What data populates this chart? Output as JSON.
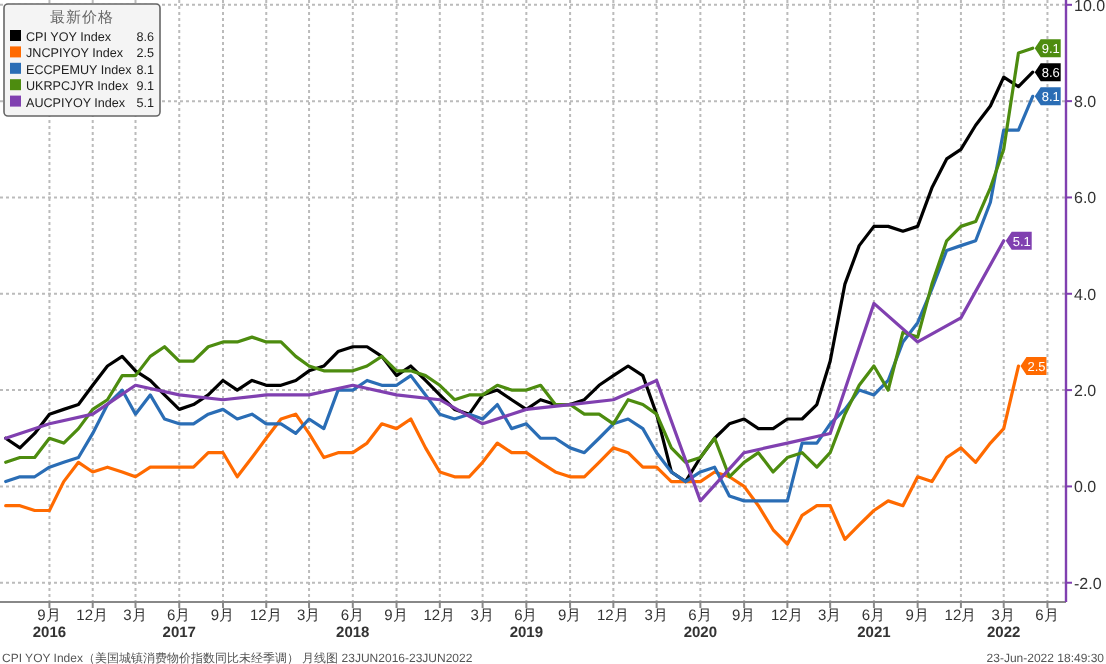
{
  "chart_data": {
    "type": "line",
    "legend_title": "最新价格",
    "legend": "top left",
    "grid": true,
    "marker": "none",
    "line_style": "solid",
    "x": [
      "2016-06",
      "2016-07",
      "2016-08",
      "2016-09",
      "2016-10",
      "2016-11",
      "2016-12",
      "2017-01",
      "2017-02",
      "2017-03",
      "2017-04",
      "2017-05",
      "2017-06",
      "2017-07",
      "2017-08",
      "2017-09",
      "2017-10",
      "2017-11",
      "2017-12",
      "2018-01",
      "2018-02",
      "2018-03",
      "2018-04",
      "2018-05",
      "2018-06",
      "2018-07",
      "2018-08",
      "2018-09",
      "2018-10",
      "2018-11",
      "2018-12",
      "2019-01",
      "2019-02",
      "2019-03",
      "2019-04",
      "2019-05",
      "2019-06",
      "2019-07",
      "2019-08",
      "2019-09",
      "2019-10",
      "2019-11",
      "2019-12",
      "2020-01",
      "2020-02",
      "2020-03",
      "2020-04",
      "2020-05",
      "2020-06",
      "2020-07",
      "2020-08",
      "2020-09",
      "2020-10",
      "2020-11",
      "2020-12",
      "2021-01",
      "2021-02",
      "2021-03",
      "2021-04",
      "2021-05",
      "2021-06",
      "2021-07",
      "2021-08",
      "2021-09",
      "2021-10",
      "2021-11",
      "2021-12",
      "2022-01",
      "2022-02",
      "2022-03",
      "2022-04",
      "2022-05"
    ],
    "series": [
      {
        "name": "CPI YOY Index",
        "color": "#000000",
        "values": [
          1.0,
          0.8,
          1.1,
          1.5,
          1.6,
          1.7,
          2.1,
          2.5,
          2.7,
          2.4,
          2.2,
          1.9,
          1.6,
          1.7,
          1.9,
          2.2,
          2.0,
          2.2,
          2.1,
          2.1,
          2.2,
          2.4,
          2.5,
          2.8,
          2.9,
          2.9,
          2.7,
          2.3,
          2.5,
          2.2,
          1.9,
          1.6,
          1.5,
          1.9,
          2.0,
          1.8,
          1.6,
          1.8,
          1.7,
          1.7,
          1.8,
          2.1,
          2.3,
          2.5,
          2.3,
          1.5,
          0.3,
          0.1,
          0.6,
          1.0,
          1.3,
          1.4,
          1.2,
          1.2,
          1.4,
          1.4,
          1.7,
          2.6,
          4.2,
          5.0,
          5.4,
          5.4,
          5.3,
          5.4,
          6.2,
          6.8,
          7.0,
          7.5,
          7.9,
          8.5,
          8.3,
          8.6
        ],
        "value_labels": [
          null,
          null,
          null,
          null,
          null,
          null,
          null,
          null,
          null,
          null,
          null,
          null,
          null,
          null,
          null,
          null,
          null,
          null,
          null,
          null,
          null,
          null,
          null,
          null,
          null,
          null,
          null,
          null,
          null,
          null,
          null,
          null,
          null,
          null,
          null,
          null,
          null,
          null,
          null,
          null,
          null,
          null,
          null,
          null,
          null,
          null,
          null,
          null,
          null,
          null,
          null,
          null,
          null,
          null,
          null,
          null,
          null,
          null,
          null,
          null,
          null,
          null,
          null,
          null,
          null,
          null,
          null,
          null,
          null,
          null,
          null,
          "8.6"
        ]
      },
      {
        "name": "JNCPIYOY Index",
        "color": "#ff6a00",
        "values": [
          -0.4,
          -0.4,
          -0.5,
          -0.5,
          0.1,
          0.5,
          0.3,
          0.4,
          0.3,
          0.2,
          0.4,
          0.4,
          0.4,
          0.4,
          0.7,
          0.7,
          0.2,
          0.6,
          1.0,
          1.4,
          1.5,
          1.1,
          0.6,
          0.7,
          0.7,
          0.9,
          1.3,
          1.2,
          1.4,
          0.8,
          0.3,
          0.2,
          0.2,
          0.5,
          0.9,
          0.7,
          0.7,
          0.5,
          0.3,
          0.2,
          0.2,
          0.5,
          0.8,
          0.7,
          0.4,
          0.4,
          0.1,
          0.1,
          0.1,
          0.3,
          0.2,
          0.0,
          -0.4,
          -0.9,
          -1.2,
          -0.6,
          -0.4,
          -0.4,
          -1.1,
          -0.8,
          -0.5,
          -0.3,
          -0.4,
          0.2,
          0.1,
          0.6,
          0.8,
          0.5,
          0.9,
          1.2,
          2.5,
          null
        ],
        "value_labels": [
          null,
          null,
          null,
          null,
          null,
          null,
          null,
          null,
          null,
          null,
          null,
          null,
          null,
          null,
          null,
          null,
          null,
          null,
          null,
          null,
          null,
          null,
          null,
          null,
          null,
          null,
          null,
          null,
          null,
          null,
          null,
          null,
          null,
          null,
          null,
          null,
          null,
          null,
          null,
          null,
          null,
          null,
          null,
          null,
          null,
          null,
          null,
          null,
          null,
          null,
          null,
          null,
          null,
          null,
          null,
          null,
          null,
          null,
          null,
          null,
          null,
          null,
          null,
          null,
          null,
          null,
          null,
          null,
          null,
          null,
          "2.5",
          null
        ]
      },
      {
        "name": "ECCPEMUY Index",
        "color": "#2a6db5",
        "values": [
          0.1,
          0.2,
          0.2,
          0.4,
          0.5,
          0.6,
          1.1,
          1.7,
          2.0,
          1.5,
          1.9,
          1.4,
          1.3,
          1.3,
          1.5,
          1.6,
          1.4,
          1.5,
          1.3,
          1.3,
          1.1,
          1.4,
          1.2,
          2.0,
          2.0,
          2.2,
          2.1,
          2.1,
          2.3,
          1.9,
          1.5,
          1.4,
          1.5,
          1.4,
          1.7,
          1.2,
          1.3,
          1.0,
          1.0,
          0.8,
          0.7,
          1.0,
          1.3,
          1.4,
          1.2,
          0.7,
          0.3,
          0.1,
          0.3,
          0.4,
          -0.2,
          -0.3,
          -0.3,
          -0.3,
          -0.3,
          0.9,
          0.9,
          1.3,
          1.6,
          2.0,
          1.9,
          2.2,
          3.0,
          3.4,
          4.1,
          4.9,
          5.0,
          5.1,
          5.9,
          7.4,
          7.4,
          8.1
        ],
        "value_labels": [
          null,
          null,
          null,
          null,
          null,
          null,
          null,
          null,
          null,
          null,
          null,
          null,
          null,
          null,
          null,
          null,
          null,
          null,
          null,
          null,
          null,
          null,
          null,
          null,
          null,
          null,
          null,
          null,
          null,
          null,
          null,
          null,
          null,
          null,
          null,
          null,
          null,
          null,
          null,
          null,
          null,
          null,
          null,
          null,
          null,
          null,
          null,
          null,
          null,
          null,
          null,
          null,
          null,
          null,
          null,
          null,
          null,
          null,
          null,
          null,
          null,
          null,
          null,
          null,
          null,
          null,
          null,
          null,
          null,
          null,
          null,
          "8.1"
        ]
      },
      {
        "name": "UKRPCJYR Index",
        "color": "#4d8c0f",
        "values": [
          0.5,
          0.6,
          0.6,
          1.0,
          0.9,
          1.2,
          1.6,
          1.8,
          2.3,
          2.3,
          2.7,
          2.9,
          2.6,
          2.6,
          2.9,
          3.0,
          3.0,
          3.1,
          3.0,
          3.0,
          2.7,
          2.5,
          2.4,
          2.4,
          2.4,
          2.5,
          2.7,
          2.4,
          2.4,
          2.3,
          2.1,
          1.8,
          1.9,
          1.9,
          2.1,
          2.0,
          2.0,
          2.1,
          1.7,
          1.7,
          1.5,
          1.5,
          1.3,
          1.8,
          1.7,
          1.5,
          0.8,
          0.5,
          0.6,
          1.0,
          0.2,
          0.5,
          0.7,
          0.3,
          0.6,
          0.7,
          0.4,
          0.7,
          1.5,
          2.1,
          2.5,
          2.0,
          3.2,
          3.1,
          4.2,
          5.1,
          5.4,
          5.5,
          6.2,
          7.0,
          9.0,
          9.1
        ],
        "value_labels": [
          null,
          null,
          null,
          null,
          null,
          null,
          null,
          null,
          null,
          null,
          null,
          null,
          null,
          null,
          null,
          null,
          null,
          null,
          null,
          null,
          null,
          null,
          null,
          null,
          null,
          null,
          null,
          null,
          null,
          null,
          null,
          null,
          null,
          null,
          null,
          null,
          null,
          null,
          null,
          null,
          null,
          null,
          null,
          null,
          null,
          null,
          null,
          null,
          null,
          null,
          null,
          null,
          null,
          null,
          null,
          null,
          null,
          null,
          null,
          null,
          null,
          null,
          null,
          null,
          null,
          null,
          null,
          null,
          null,
          null,
          null,
          "9.1"
        ]
      },
      {
        "name": "AUCPIYOY Index",
        "color": "#8040b0",
        "x": [
          "2016-06",
          "2016-09",
          "2016-12",
          "2017-03",
          "2017-06",
          "2017-09",
          "2017-12",
          "2018-03",
          "2018-06",
          "2018-09",
          "2018-12",
          "2019-03",
          "2019-06",
          "2019-09",
          "2019-12",
          "2020-03",
          "2020-06",
          "2020-09",
          "2020-12",
          "2021-03",
          "2021-06",
          "2021-09",
          "2021-12",
          "2022-03"
        ],
        "values": [
          1.0,
          1.3,
          1.5,
          2.1,
          1.9,
          1.8,
          1.9,
          1.9,
          2.1,
          1.9,
          1.8,
          1.3,
          1.6,
          1.7,
          1.8,
          2.2,
          -0.3,
          0.7,
          0.9,
          1.1,
          3.8,
          3.0,
          3.5,
          5.1
        ],
        "value_labels": [
          null,
          null,
          null,
          null,
          null,
          null,
          null,
          null,
          null,
          null,
          null,
          null,
          null,
          null,
          null,
          null,
          null,
          null,
          null,
          null,
          null,
          null,
          null,
          "5.1"
        ]
      }
    ],
    "xlim": [
      "2016-05-20",
      "2022-07-10"
    ],
    "xticks": [
      {
        "value": "2016-09-01",
        "label": "9月\n2016"
      },
      {
        "value": "2016-12-01",
        "label": "12月"
      },
      {
        "value": "2017-03-01",
        "label": "3月"
      },
      {
        "value": "2017-06-01",
        "label": "6月\n2017"
      },
      {
        "value": "2017-09-01",
        "label": "9月"
      },
      {
        "value": "2017-12-01",
        "label": "12月"
      },
      {
        "value": "2018-03-01",
        "label": "3月"
      },
      {
        "value": "2018-06-01",
        "label": "6月\n2018"
      },
      {
        "value": "2018-09-01",
        "label": "9月"
      },
      {
        "value": "2018-12-01",
        "label": "12月"
      },
      {
        "value": "2019-03-01",
        "label": "3月"
      },
      {
        "value": "2019-06-01",
        "label": "6月\n2019"
      },
      {
        "value": "2019-09-01",
        "label": "9月"
      },
      {
        "value": "2019-12-01",
        "label": "12月"
      },
      {
        "value": "2020-03-01",
        "label": "3月"
      },
      {
        "value": "2020-06-01",
        "label": "6月\n2020"
      },
      {
        "value": "2020-09-01",
        "label": "9月"
      },
      {
        "value": "2020-12-01",
        "label": "12月"
      },
      {
        "value": "2021-03-01",
        "label": "3月"
      },
      {
        "value": "2021-06-01",
        "label": "6月\n2021"
      },
      {
        "value": "2021-09-01",
        "label": "9月"
      },
      {
        "value": "2021-12-01",
        "label": "12月"
      },
      {
        "value": "2022-03-01",
        "label": "3月\n2022"
      },
      {
        "value": "2022-06-01",
        "label": "6月"
      }
    ],
    "ylim": [
      -2.4,
      10.1
    ],
    "yticks": [
      {
        "value": -2,
        "label": "-2.0"
      },
      {
        "value": 0,
        "label": "0.0"
      },
      {
        "value": 2,
        "label": "2.0"
      },
      {
        "value": 4,
        "label": "4.0"
      },
      {
        "value": 6,
        "label": "6.0"
      },
      {
        "value": 8,
        "label": "8.0"
      },
      {
        "value": 10,
        "label": "10.0"
      }
    ],
    "annotations": [
      "CPI YOY Index（美国城镇消费物价指数同比未经季调）  月线图  23JUN2016-23JUN2022",
      "23-Jun-2022 18:49:30"
    ]
  }
}
